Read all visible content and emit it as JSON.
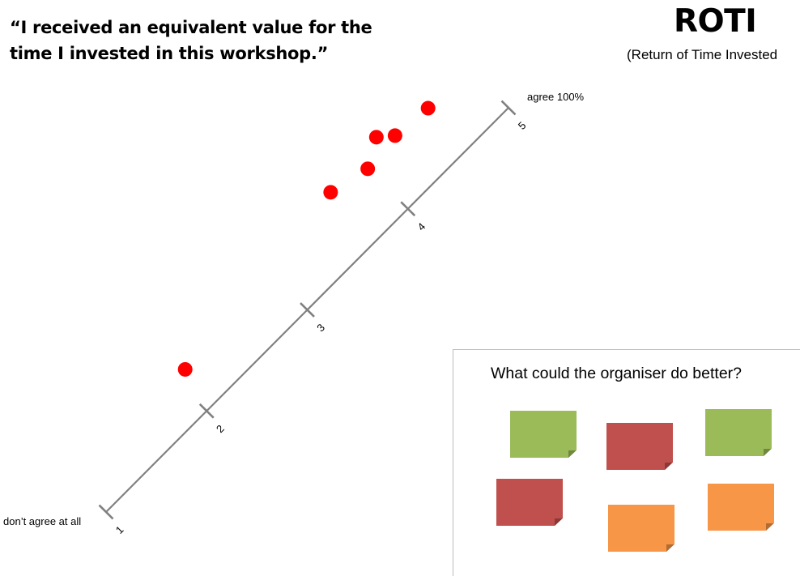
{
  "header": {
    "question": "“I received an equivalent value for the time I invested in this workshop.”",
    "title": "ROTI",
    "subtitle": "(Return of Time Invested"
  },
  "scale": {
    "min_label": "don’t agree at all",
    "max_label": "agree 100%",
    "ticks": [
      "1",
      "2",
      "3",
      "4",
      "5"
    ],
    "line_color": "#808080"
  },
  "votes": {
    "color": "#ff0000",
    "points": [
      {
        "value": 2.1
      },
      {
        "value": 3.7
      },
      {
        "value": 4.0
      },
      {
        "value": 4.2
      },
      {
        "value": 4.3
      },
      {
        "value": 4.6
      }
    ]
  },
  "feedback": {
    "title": "What could the organiser do better?",
    "notes": [
      {
        "color": "#9bbb59"
      },
      {
        "color": "#c0504d"
      },
      {
        "color": "#9bbb59"
      },
      {
        "color": "#c0504d"
      },
      {
        "color": "#f79646"
      },
      {
        "color": "#f79646"
      }
    ]
  }
}
